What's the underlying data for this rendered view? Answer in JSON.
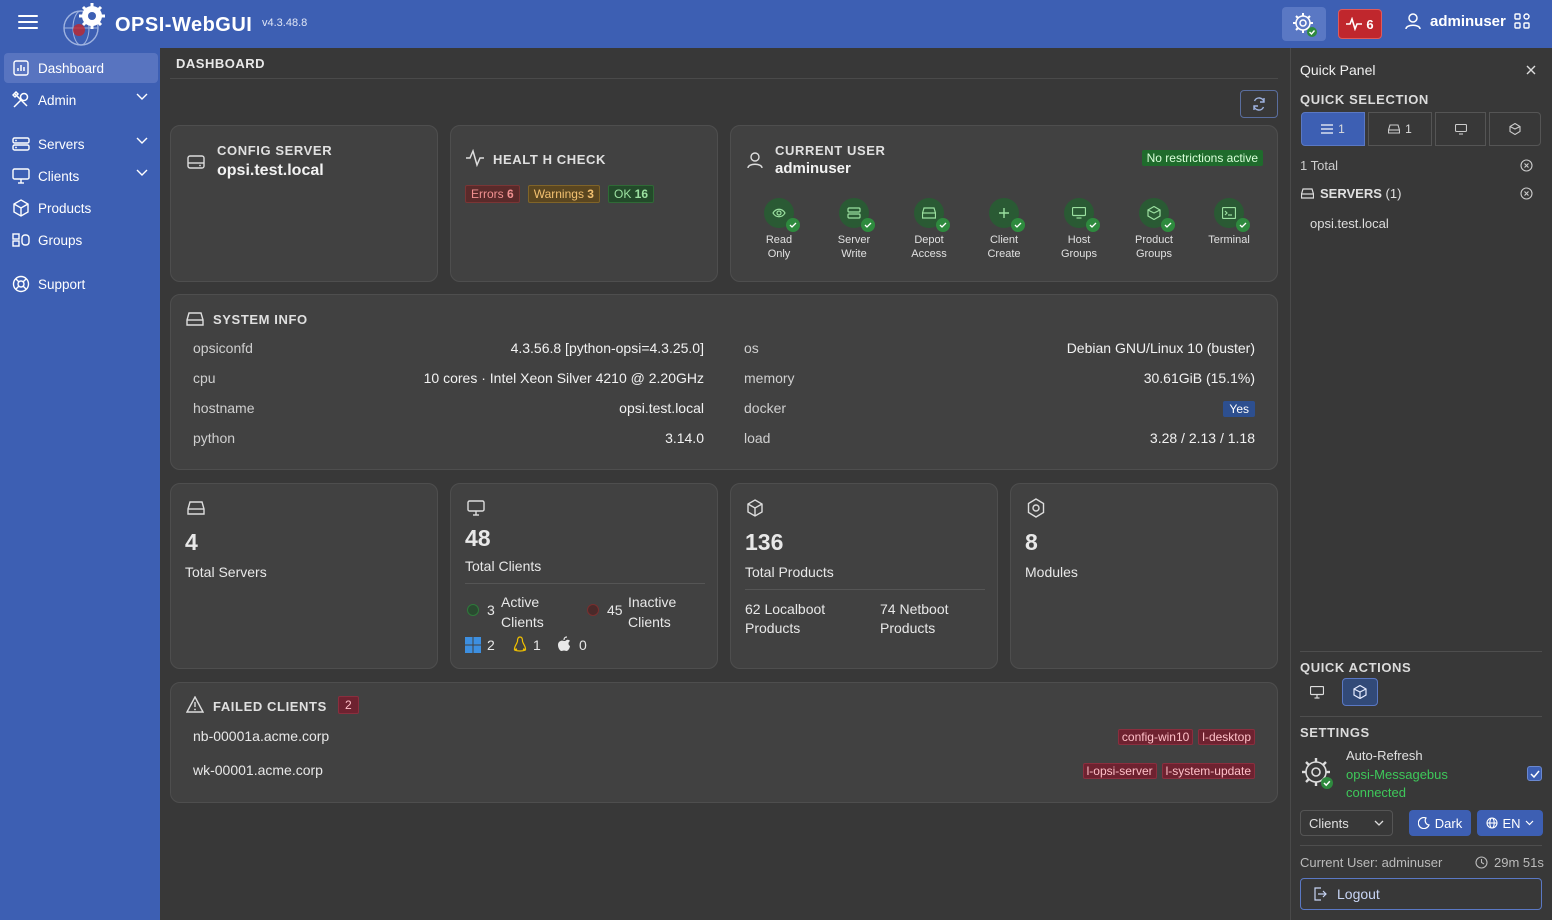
{
  "app": {
    "brand": "OPSI-WebGUI",
    "version": "v4.3.48.8"
  },
  "topbar": {
    "health_count": "6",
    "username": "adminuser"
  },
  "sidebar": {
    "items": [
      {
        "label": "Dashboard",
        "icon": "chart-icon"
      },
      {
        "label": "Admin",
        "icon": "tools-icon"
      },
      {
        "label": "Servers",
        "icon": "server-icon"
      },
      {
        "label": "Clients",
        "icon": "monitor-icon"
      },
      {
        "label": "Products",
        "icon": "box-icon"
      },
      {
        "label": "Groups",
        "icon": "groups-icon"
      },
      {
        "label": "Support",
        "icon": "lifebuoy-icon"
      }
    ]
  },
  "page": {
    "title": "DASHBOARD"
  },
  "config_server": {
    "label": "CONFIG SERVER",
    "value": "opsi.test.local"
  },
  "health_check": {
    "label": "HEALT H CHECK",
    "errors_label": "Errors",
    "errors": "6",
    "warnings_label": "Warnings",
    "warnings": "3",
    "ok_label": "OK",
    "ok": "16"
  },
  "current_user": {
    "label": "CURRENT USER",
    "name": "adminuser",
    "restriction": "No restrictions active",
    "permissions": [
      {
        "line1": "Read",
        "line2": "Only",
        "icon": "eye-icon"
      },
      {
        "line1": "Server",
        "line2": "Write",
        "icon": "database-icon"
      },
      {
        "line1": "Depot",
        "line2": "Access",
        "icon": "drive-icon"
      },
      {
        "line1": "Client",
        "line2": "Create",
        "icon": "plus-icon"
      },
      {
        "line1": "Host",
        "line2": "Groups",
        "icon": "monitor-icon"
      },
      {
        "line1": "Product",
        "line2": "Groups",
        "icon": "box-icon"
      },
      {
        "line1": "Terminal",
        "line2": "",
        "icon": "terminal-icon"
      }
    ]
  },
  "system_info": {
    "label": "SYSTEM INFO",
    "left": [
      {
        "key": "opsiconfd",
        "value": "4.3.56.8 [python-opsi=4.3.25.0]"
      },
      {
        "key": "cpu",
        "value": "10 cores · Intel Xeon Silver 4210 @ 2.20GHz"
      },
      {
        "key": "hostname",
        "value": "opsi.test.local"
      },
      {
        "key": "python",
        "value": "3.14.0"
      }
    ],
    "right": [
      {
        "key": "os",
        "value": "Debian GNU/Linux 10 (buster)"
      },
      {
        "key": "memory",
        "value": "30.61GiB (15.1%)"
      },
      {
        "key": "docker",
        "value": "Yes"
      },
      {
        "key": "load",
        "value": "3.28 / 2.13 / 1.18"
      }
    ]
  },
  "stats": {
    "servers": {
      "count": "4",
      "label": "Total Servers"
    },
    "clients": {
      "count": "48",
      "label": "Total Clients",
      "active_count": "3",
      "active_l1": "Active",
      "active_l2": "Clients",
      "inactive_count": "45",
      "inactive_l1": "Inactive",
      "inactive_l2": "Clients",
      "windows": "2",
      "linux": "1",
      "mac": "0"
    },
    "products": {
      "count": "136",
      "label": "Total Products",
      "localboot_l1": "62 Localboot",
      "localboot_l2": "Products",
      "netboot_l1": "74 Netboot",
      "netboot_l2": "Products"
    },
    "modules": {
      "count": "8",
      "label": "Modules"
    }
  },
  "failed_clients": {
    "label": "FAILED CLIENTS",
    "count": "2",
    "rows": [
      {
        "name": "nb-00001a.acme.corp",
        "tags": [
          "config-win10",
          "l-desktop"
        ]
      },
      {
        "name": "wk-00001.acme.corp",
        "tags": [
          "l-opsi-server",
          "l-system-update"
        ]
      }
    ]
  },
  "quick_panel": {
    "title": "Quick Panel",
    "selection_label": "QUICK SELECTION",
    "seg1": "1",
    "seg2": "1",
    "total": "1 Total",
    "servers_label": "SERVERS",
    "servers_count": "(1)",
    "server_item": "opsi.test.local",
    "actions_label": "QUICK ACTIONS",
    "settings_label": "SETTINGS",
    "auto_refresh": "Auto-Refresh",
    "messagebus": "opsi-Messagebus",
    "connected": "connected",
    "select_value": "Clients",
    "theme_label": "Dark",
    "lang_label": "EN",
    "current_user": "Current User: adminuser",
    "timer": "29m 51s",
    "logout": "Logout"
  },
  "colors": {
    "accent": "#3d5fb3",
    "background": "#383838",
    "card": "#414141",
    "success": "#2e8a3e",
    "danger": "#c0272d"
  }
}
